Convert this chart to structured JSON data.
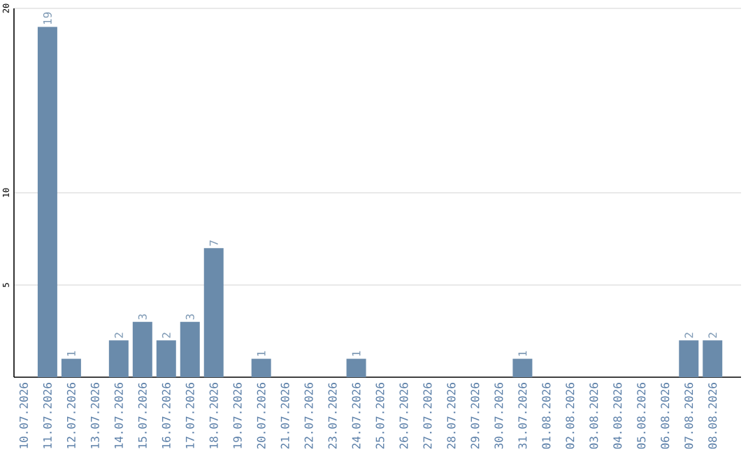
{
  "chart_data": {
    "type": "bar",
    "categories": [
      "10.07.2026",
      "11.07.2026",
      "12.07.2026",
      "13.07.2026",
      "14.07.2026",
      "15.07.2026",
      "16.07.2026",
      "17.07.2026",
      "18.07.2026",
      "19.07.2026",
      "20.07.2026",
      "21.07.2026",
      "22.07.2026",
      "23.07.2026",
      "24.07.2026",
      "25.07.2026",
      "26.07.2026",
      "27.07.2026",
      "28.07.2026",
      "29.07.2026",
      "30.07.2026",
      "31.07.2026",
      "01.08.2026",
      "02.08.2026",
      "03.08.2026",
      "04.08.2026",
      "05.08.2026",
      "06.08.2026",
      "07.08.2026",
      "08.08.2026"
    ],
    "values": [
      0,
      19,
      1,
      0,
      2,
      3,
      2,
      3,
      7,
      0,
      1,
      0,
      0,
      0,
      1,
      0,
      0,
      0,
      0,
      0,
      0,
      1,
      0,
      0,
      0,
      0,
      0,
      0,
      2,
      2
    ],
    "value_labels": [
      null,
      "19",
      "1",
      null,
      "2",
      "3",
      "2",
      "3",
      "7",
      null,
      "1",
      null,
      null,
      null,
      "1",
      null,
      null,
      null,
      null,
      null,
      null,
      "1",
      null,
      null,
      null,
      null,
      null,
      null,
      "2",
      "2"
    ],
    "color": "#6a8bab",
    "ylim": [
      0,
      20
    ],
    "yticks": [
      5,
      10,
      20
    ],
    "grid": "y"
  }
}
